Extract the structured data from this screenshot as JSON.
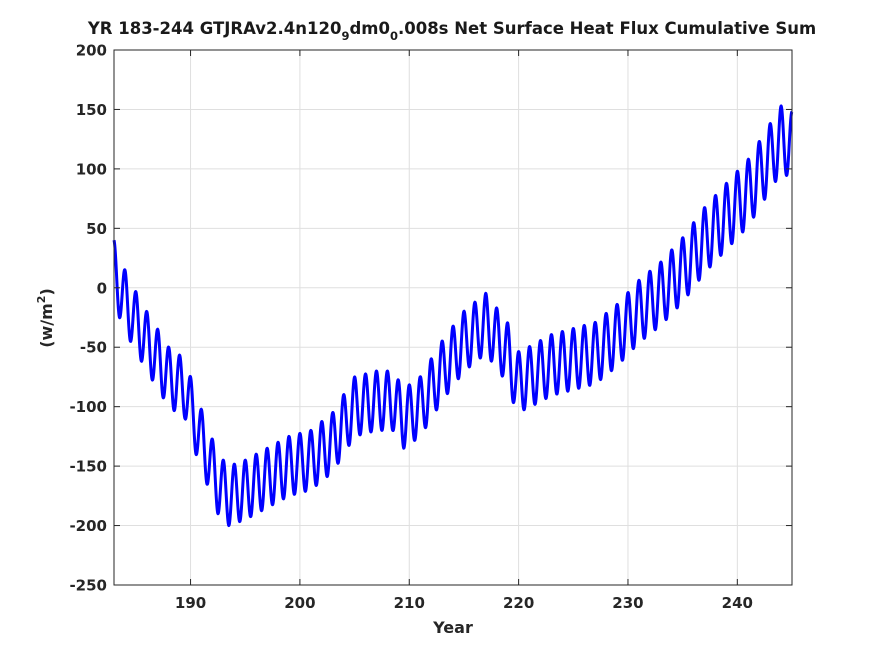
{
  "chart_data": {
    "type": "line",
    "title_parts": {
      "p1": "YR 183-244 GTJRAv2.4n120",
      "s1": "9",
      "p2": "dm0",
      "s2": "0",
      "p3": ".008s Net Surface Heat Flux  Cumulative Sum"
    },
    "xlabel": "Year",
    "ylabel_parts": {
      "base": "(w/m",
      "sup": "2",
      "end": ")"
    },
    "xlim": [
      183,
      245
    ],
    "ylim": [
      -250,
      200
    ],
    "xticks": [
      190,
      200,
      210,
      220,
      230,
      240
    ],
    "yticks": [
      200,
      150,
      100,
      50,
      0,
      -50,
      -100,
      -150,
      -200,
      -250
    ],
    "grid": true,
    "series": [
      {
        "color": "#0000ff",
        "cycle_years": 1,
        "trend_x": [
          183.0,
          183.5,
          184.5,
          186.0,
          188.0,
          189.5,
          190.5,
          191.5,
          192.5,
          193.5,
          195.0,
          197.0,
          199.0,
          201.0,
          203.0,
          205.0,
          207.0,
          208.5,
          209.5,
          211.0,
          213.0,
          215.0,
          217.0,
          219.0,
          219.8,
          221.0,
          223.0,
          225.0,
          227.0,
          229.0,
          231.0,
          233.0,
          235.0,
          237.0,
          239.0,
          241.0,
          243.0,
          244.0,
          245.0
        ],
        "trend_y": [
          15,
          0,
          -20,
          -45,
          -75,
          -85,
          -115,
          -140,
          -165,
          -175,
          -170,
          -160,
          -150,
          -145,
          -130,
          -100,
          -95,
          -95,
          -110,
          -100,
          -70,
          -45,
          -30,
          -55,
          -80,
          -75,
          -65,
          -60,
          -55,
          -40,
          -20,
          -5,
          15,
          40,
          60,
          80,
          110,
          125,
          120
        ],
        "amp_x": [
          183,
          190,
          210,
          230,
          240,
          245
        ],
        "amp_y": [
          25,
          25,
          25,
          26,
          28,
          28
        ]
      }
    ]
  }
}
